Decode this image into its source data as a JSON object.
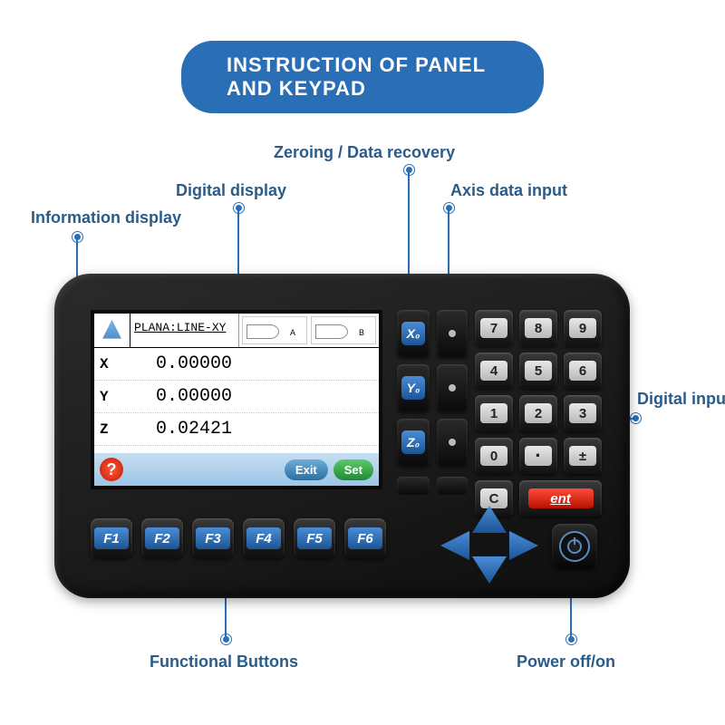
{
  "title": "INSTRUCTION OF PANEL AND KEYPAD",
  "callouts": {
    "info_display": "Information display",
    "digital_display": "Digital display",
    "zeroing": "Zeroing / Data recovery",
    "axis_input": "Axis data input",
    "digital_input": "Digital input",
    "functional": "Functional Buttons",
    "power": "Power off/on"
  },
  "colors": {
    "banner_bg": "#2a6fb5",
    "callout_text": "#2a5c8a",
    "device_dark": "#1a1a1a",
    "key_blue": "#2e6fb5",
    "key_grey": "#cccccc",
    "ent_red": "#d6261a",
    "set_green": "#2fa246"
  },
  "screen": {
    "plana": "PLANA:LINE-XY",
    "rows": [
      {
        "label": "X",
        "value": "0.00000"
      },
      {
        "label": "Y",
        "value": "0.00000"
      },
      {
        "label": "Z",
        "value": "0.02421"
      }
    ],
    "help": "?",
    "exit": "Exit",
    "set": "Set",
    "diag_a": "A",
    "diag_b": "B"
  },
  "fkeys": [
    "F1",
    "F2",
    "F3",
    "F4",
    "F5",
    "F6"
  ],
  "xyz": [
    "X₀",
    "Y₀",
    "Z₀"
  ],
  "keypad": [
    "7",
    "8",
    "9",
    "4",
    "5",
    "6",
    "1",
    "2",
    "3",
    "0",
    "·",
    "±",
    "C",
    "ent"
  ],
  "leader_style": {
    "stroke": "#2a6fb5",
    "width": 2
  }
}
